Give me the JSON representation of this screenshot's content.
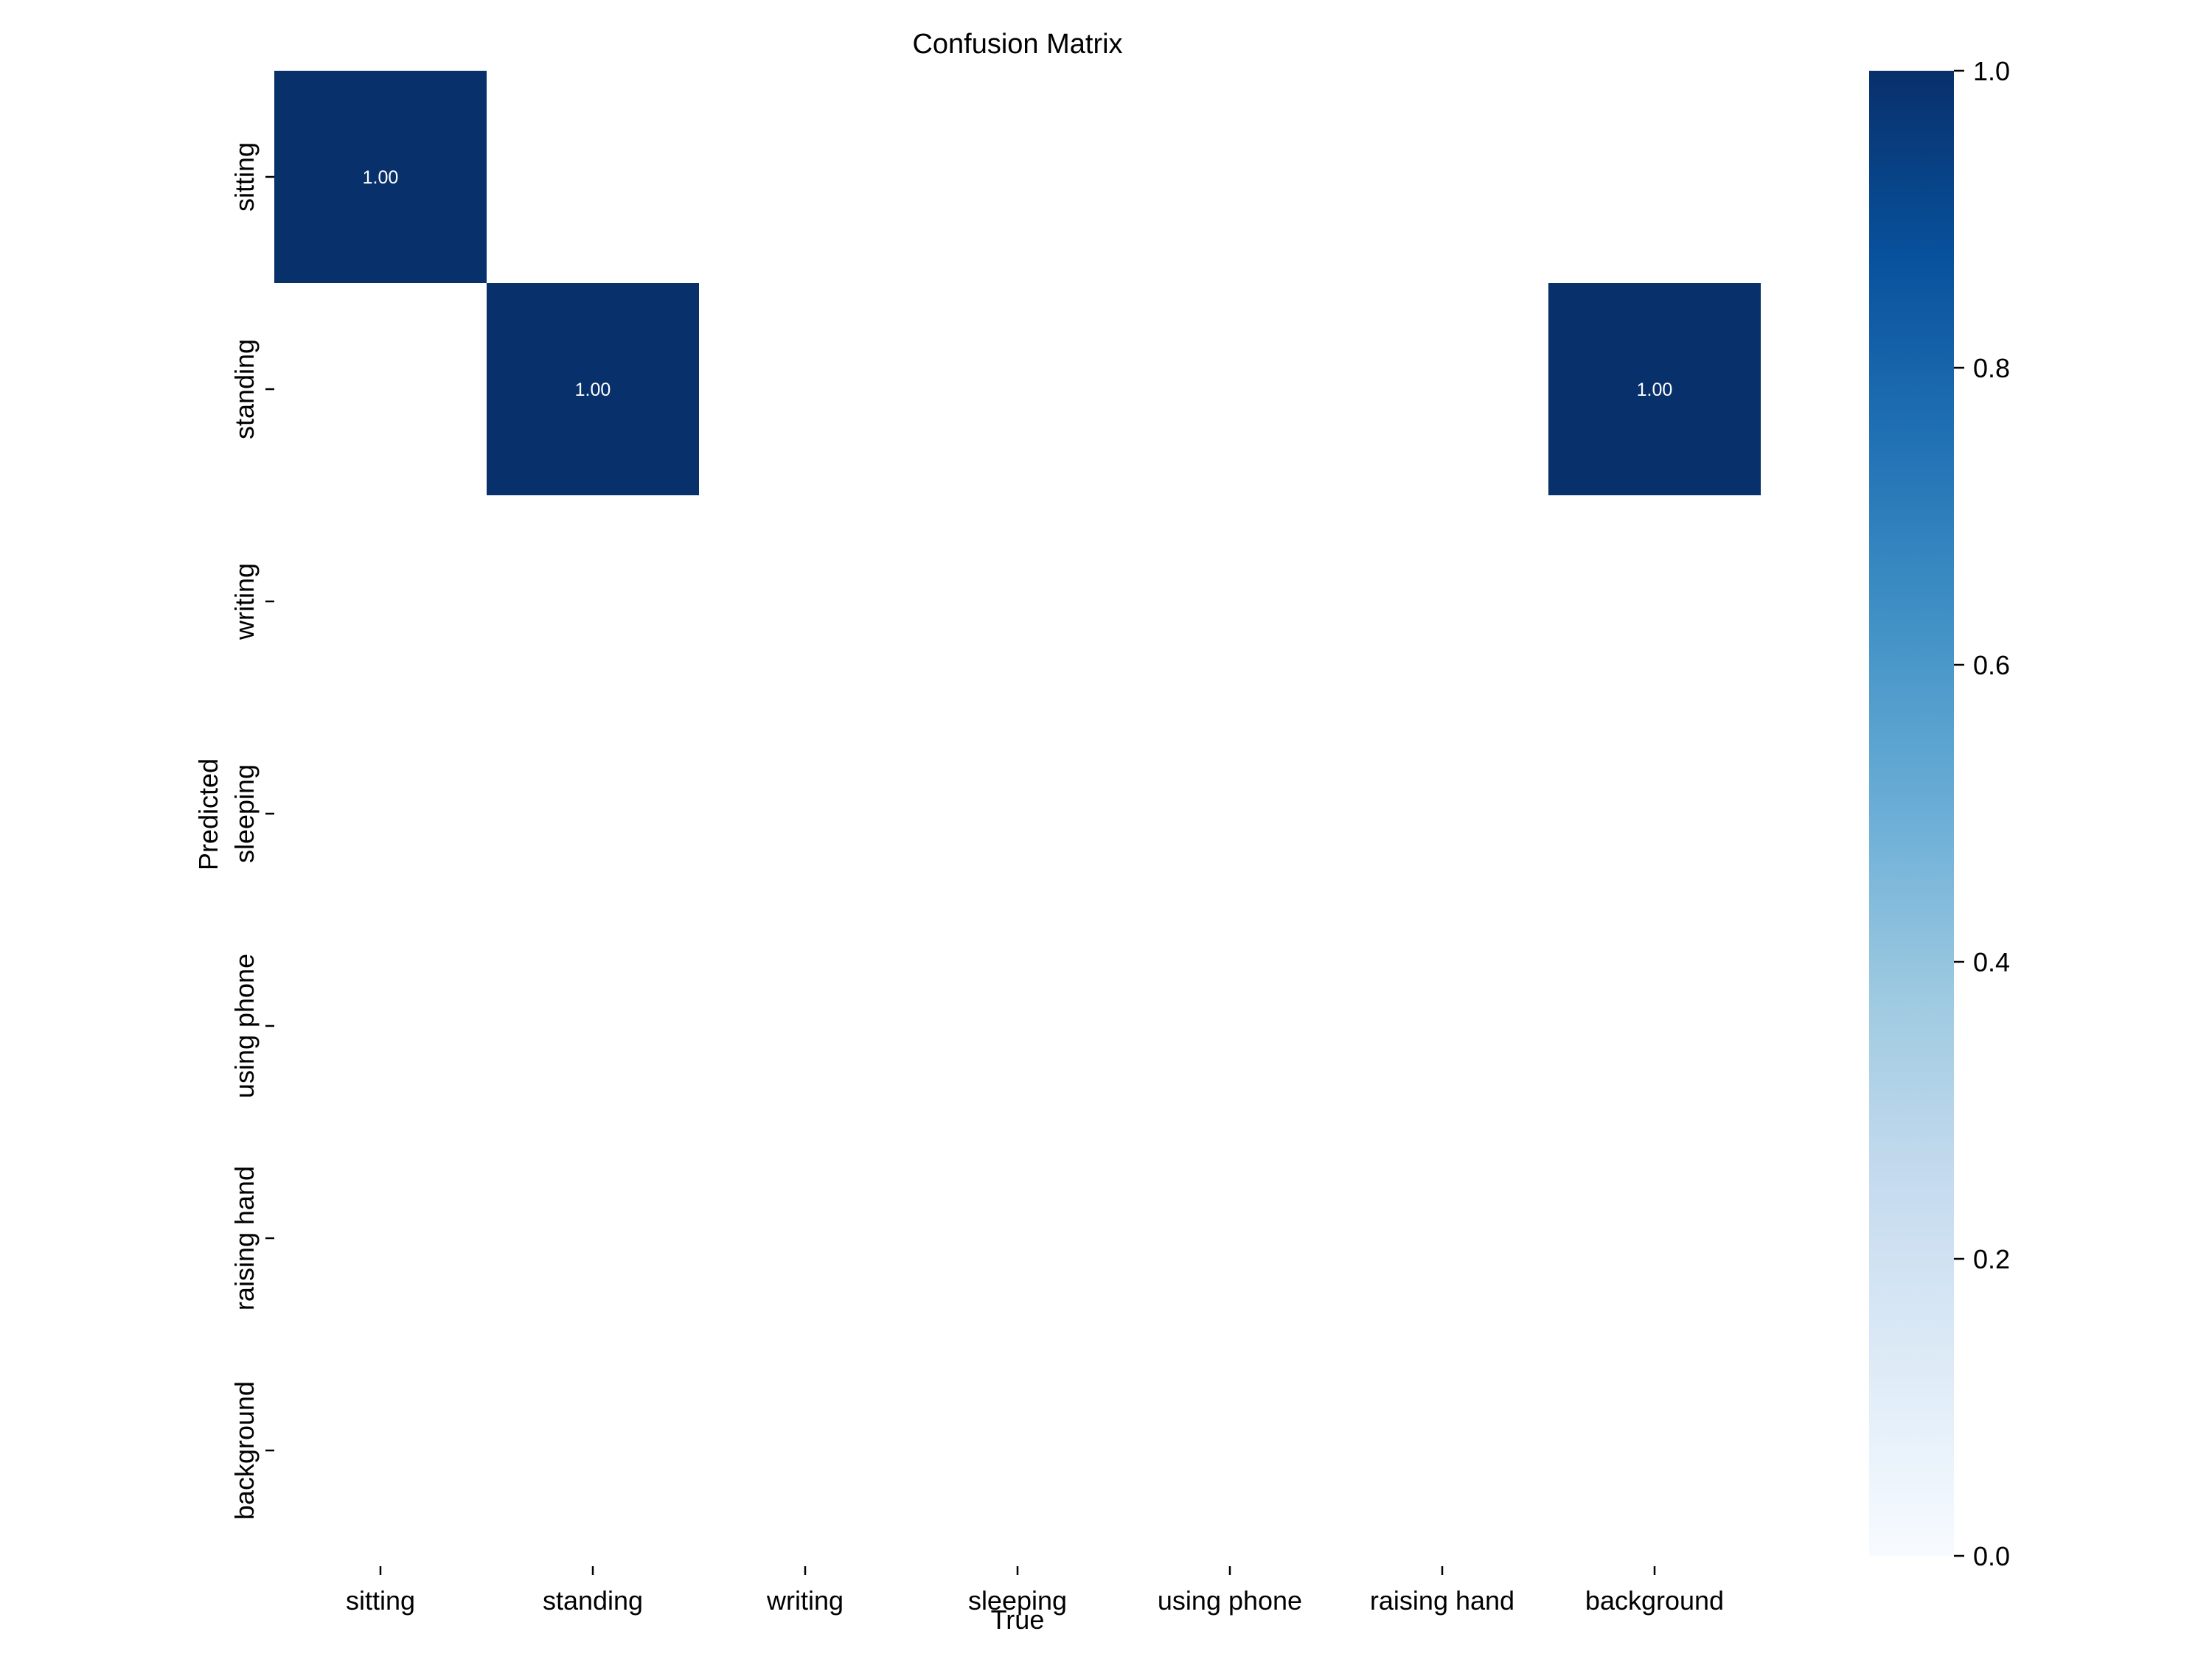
{
  "chart_data": {
    "type": "heatmap",
    "title": "Confusion Matrix",
    "xlabel": "True",
    "ylabel": "Predicted",
    "x_categories": [
      "sitting",
      "standing",
      "writing",
      "sleeping",
      "using phone",
      "raising hand",
      "background"
    ],
    "y_categories": [
      "sitting",
      "standing",
      "writing",
      "sleeping",
      "using phone",
      "raising hand",
      "background"
    ],
    "values": [
      [
        1.0,
        null,
        null,
        null,
        null,
        null,
        null
      ],
      [
        null,
        1.0,
        null,
        null,
        null,
        null,
        1.0
      ],
      [
        null,
        null,
        null,
        null,
        null,
        null,
        null
      ],
      [
        null,
        null,
        null,
        null,
        null,
        null,
        null
      ],
      [
        null,
        null,
        null,
        null,
        null,
        null,
        null
      ],
      [
        null,
        null,
        null,
        null,
        null,
        null,
        null
      ],
      [
        null,
        null,
        null,
        null,
        null,
        null,
        null
      ]
    ],
    "value_format": "2f",
    "colorbar": {
      "colormap": "Blues",
      "range": [
        0.0,
        1.0
      ],
      "ticks": [
        0.0,
        0.2,
        0.4,
        0.6,
        0.8,
        1.0
      ],
      "tick_labels": [
        "0.0",
        "0.2",
        "0.4",
        "0.6",
        "0.8",
        "1.0"
      ]
    },
    "colors": {
      "low": "#f7fbff",
      "high": "#08306b",
      "annotation_text": "#ffffff",
      "blues_stops": [
        "#f7fbff",
        "#deebf7",
        "#c6dbef",
        "#9ecae1",
        "#6baed6",
        "#4292c6",
        "#2171b5",
        "#08519c",
        "#08306b"
      ]
    }
  }
}
